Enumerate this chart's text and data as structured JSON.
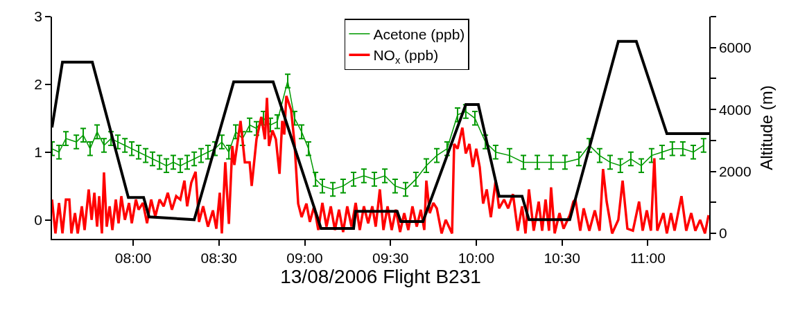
{
  "chart_data": {
    "type": "line",
    "xlabel": "13/08/2006 Flight B231",
    "y2label": "Altitude (m)",
    "xlim": [
      7.527,
      11.358
    ],
    "xticks": [
      {
        "value": 8,
        "label": "08:00"
      },
      {
        "value": 8.5,
        "label": "08:30"
      },
      {
        "value": 9,
        "label": "09:00"
      },
      {
        "value": 9.5,
        "label": "09:30"
      },
      {
        "value": 10,
        "label": "10:00"
      },
      {
        "value": 10.5,
        "label": "10:30"
      },
      {
        "value": 11,
        "label": "11:00"
      }
    ],
    "ylim": [
      -0.28,
      3
    ],
    "yticks": [
      0,
      1,
      2,
      3
    ],
    "y2lim": [
      -178,
      7000
    ],
    "y2ticks": [
      0,
      {
        "value": 1000,
        "label": null
      },
      2000,
      {
        "value": 3000,
        "label": null
      },
      4000,
      {
        "value": 5000,
        "label": null
      },
      6000,
      {
        "value": 7000,
        "label": null
      }
    ],
    "legend": "top",
    "series": [
      {
        "name": "Acetone (ppb)",
        "color": "#009900",
        "x": [
          7.527,
          7.568,
          7.608,
          7.669,
          7.709,
          7.749,
          7.79,
          7.83,
          7.871,
          7.911,
          7.952,
          7.992,
          8.032,
          8.073,
          8.113,
          8.154,
          8.194,
          8.234,
          8.275,
          8.315,
          8.356,
          8.396,
          8.436,
          8.477,
          8.517,
          8.558,
          8.598,
          8.638,
          8.679,
          8.719,
          8.76,
          8.8,
          8.84,
          8.901,
          8.941,
          8.982,
          9.022,
          9.063,
          9.103,
          9.164,
          9.224,
          9.285,
          9.345,
          9.406,
          9.467,
          9.527,
          9.588,
          9.648,
          9.709,
          9.77,
          9.83,
          9.891,
          9.939,
          9.992,
          10.053,
          10.113,
          10.194,
          10.275,
          10.356,
          10.436,
          10.517,
          10.598,
          10.659,
          10.719,
          10.78,
          10.84,
          10.901,
          10.962,
          11.022,
          11.083,
          11.143,
          11.204,
          11.265,
          11.325
        ],
        "values": [
          1.05,
          1.0,
          1.2,
          1.15,
          1.25,
          1.05,
          1.3,
          1.1,
          1.2,
          1.15,
          1.1,
          1.05,
          1.0,
          0.95,
          0.9,
          0.85,
          0.8,
          0.85,
          0.8,
          0.85,
          0.9,
          0.95,
          1.0,
          1.05,
          1.15,
          1.0,
          1.3,
          1.2,
          1.4,
          1.35,
          1.5,
          1.4,
          1.45,
          2.05,
          1.5,
          1.3,
          1.05,
          0.6,
          0.5,
          0.45,
          0.5,
          0.6,
          0.65,
          0.6,
          0.65,
          0.5,
          0.45,
          0.6,
          0.8,
          0.95,
          1.05,
          1.55,
          1.6,
          1.5,
          1.15,
          1.0,
          0.95,
          0.85,
          0.85,
          0.85,
          0.85,
          0.9,
          1.1,
          0.95,
          0.85,
          0.8,
          0.9,
          0.8,
          0.95,
          1.0,
          1.05,
          1.05,
          1.0,
          1.1
        ],
        "errors": [
          0.1,
          0.1,
          0.1,
          0.1,
          0.1,
          0.1,
          0.1,
          0.1,
          0.1,
          0.1,
          0.1,
          0.1,
          0.1,
          0.1,
          0.1,
          0.1,
          0.1,
          0.1,
          0.1,
          0.1,
          0.1,
          0.1,
          0.1,
          0.1,
          0.1,
          0.1,
          0.1,
          0.1,
          0.1,
          0.1,
          0.1,
          0.1,
          0.1,
          0.1,
          0.1,
          0.1,
          0.1,
          0.1,
          0.1,
          0.1,
          0.1,
          0.1,
          0.1,
          0.1,
          0.1,
          0.1,
          0.1,
          0.1,
          0.1,
          0.1,
          0.1,
          0.1,
          0.1,
          0.1,
          0.1,
          0.1,
          0.1,
          0.1,
          0.1,
          0.1,
          0.1,
          0.1,
          0.1,
          0.1,
          0.1,
          0.1,
          0.1,
          0.1,
          0.1,
          0.1,
          0.1,
          0.1,
          0.1,
          0.1
        ]
      },
      {
        "name": "NO$_{x}$ (ppb)",
        "color": "#ff0000",
        "x": [
          7.527,
          7.547,
          7.568,
          7.588,
          7.608,
          7.628,
          7.64,
          7.661,
          7.677,
          7.701,
          7.717,
          7.741,
          7.758,
          7.774,
          7.79,
          7.802,
          7.818,
          7.83,
          7.846,
          7.863,
          7.879,
          7.899,
          7.915,
          7.931,
          7.952,
          7.976,
          7.992,
          8.016,
          8.032,
          8.057,
          8.081,
          8.105,
          8.129,
          8.154,
          8.178,
          8.202,
          8.226,
          8.251,
          8.275,
          8.299,
          8.315,
          8.339,
          8.364,
          8.384,
          8.408,
          8.436,
          8.465,
          8.485,
          8.505,
          8.517,
          8.537,
          8.558,
          8.578,
          8.59,
          8.626,
          8.651,
          8.679,
          8.691,
          8.719,
          8.747,
          8.768,
          8.78,
          8.792,
          8.812,
          8.832,
          8.853,
          8.869,
          8.881,
          8.893,
          8.921,
          8.941,
          8.962,
          8.982,
          9.01,
          9.03,
          9.055,
          9.079,
          9.103,
          9.127,
          9.152,
          9.176,
          9.2,
          9.224,
          9.248,
          9.273,
          9.297,
          9.321,
          9.345,
          9.37,
          9.394,
          9.414,
          9.438,
          9.459,
          9.483,
          9.507,
          9.531,
          9.556,
          9.58,
          9.604,
          9.628,
          9.653,
          9.677,
          9.697,
          9.709,
          9.729,
          9.75,
          9.77,
          9.798,
          9.822,
          9.859,
          9.871,
          9.891,
          9.919,
          9.939,
          9.96,
          9.98,
          10.0,
          10.02,
          10.04,
          10.061,
          10.085,
          10.113,
          10.133,
          10.162,
          10.186,
          10.214,
          10.242,
          10.267,
          10.287,
          10.307,
          10.335,
          10.364,
          10.384,
          10.404,
          10.424,
          10.436,
          10.457,
          10.485,
          10.509,
          10.545,
          10.566,
          10.578,
          10.606,
          10.626,
          10.659,
          10.691,
          10.719,
          10.739,
          10.76,
          10.792,
          10.828,
          10.853,
          10.881,
          10.913,
          10.949,
          10.97,
          10.994,
          11.018,
          11.038,
          11.055,
          11.091,
          11.111,
          11.135,
          11.156,
          11.196,
          11.224,
          11.253,
          11.277,
          11.305,
          11.333,
          11.354
        ],
        "values": [
          0.3,
          -0.2,
          0.25,
          -0.2,
          0.3,
          0.3,
          -0.2,
          0.1,
          -0.2,
          0.2,
          -0.15,
          0.45,
          0.0,
          0.4,
          -0.1,
          0.35,
          -0.2,
          0.7,
          -0.1,
          0.2,
          -0.15,
          0.3,
          -0.05,
          0.35,
          0.0,
          0.25,
          -0.05,
          0.3,
          0.15,
          0.25,
          -0.05,
          0.3,
          0.05,
          0.3,
          0.2,
          0.4,
          0.15,
          0.35,
          0.3,
          0.58,
          0.2,
          0.55,
          0.71,
          -0.03,
          0.2,
          -0.1,
          0.14,
          -0.13,
          0.4,
          -0.2,
          0.85,
          -0.06,
          1.09,
          0.81,
          1.46,
          0.85,
          0.85,
          0.5,
          1.19,
          1.52,
          1.19,
          1.8,
          1.09,
          1.32,
          1.19,
          0.68,
          1.46,
          1.26,
          1.83,
          1.62,
          1.12,
          0.24,
          0.04,
          0.24,
          -0.03,
          0.2,
          -0.15,
          0.25,
          -0.1,
          0.2,
          -0.15,
          0.15,
          -0.18,
          0.2,
          -0.1,
          0.25,
          -0.15,
          0.2,
          -0.05,
          0.2,
          -0.1,
          0.45,
          -0.15,
          0.2,
          -0.15,
          0.15,
          -0.18,
          0.1,
          -0.15,
          0.2,
          -0.1,
          0.15,
          -0.15,
          0.58,
          0.1,
          0.25,
          0.17,
          -0.2,
          0.0,
          -0.2,
          1.12,
          1.05,
          1.36,
          0.98,
          1.12,
          0.78,
          1.05,
          0.78,
          0.24,
          0.45,
          0.04,
          0.58,
          0.17,
          0.3,
          0.17,
          0.38,
          -0.16,
          0.2,
          -0.2,
          0.45,
          -0.16,
          0.27,
          -0.16,
          0.3,
          -0.16,
          0.48,
          -0.2,
          0.1,
          -0.13,
          0.07,
          0.27,
          0.3,
          -0.16,
          0.17,
          -0.16,
          0.14,
          -0.16,
          0.75,
          0.27,
          -0.2,
          0.0,
          0.58,
          -0.13,
          -0.16,
          0.27,
          -0.16,
          0.14,
          -0.16,
          0.91,
          -0.16,
          0.1,
          -0.2,
          0.1,
          -0.16,
          0.35,
          -0.16,
          0.1,
          -0.16,
          0.0,
          -0.2,
          0.07
        ]
      },
      {
        "color": "#000000",
        "axis": "y2",
        "x": [
          7.527,
          7.588,
          7.762,
          7.972,
          8.061,
          8.093,
          8.356,
          8.586,
          8.816,
          9.095,
          9.285,
          9.297,
          9.539,
          9.56,
          9.689,
          9.939,
          10.012,
          10.133,
          10.267,
          10.307,
          10.545,
          10.828,
          10.933,
          11.111,
          11.358
        ],
        "values": [
          3420,
          5530,
          5530,
          1160,
          1160,
          530,
          440,
          4890,
          4890,
          160,
          160,
          710,
          710,
          380,
          380,
          4160,
          4160,
          1200,
          1200,
          440,
          440,
          6200,
          6200,
          3220,
          3220
        ]
      }
    ]
  }
}
